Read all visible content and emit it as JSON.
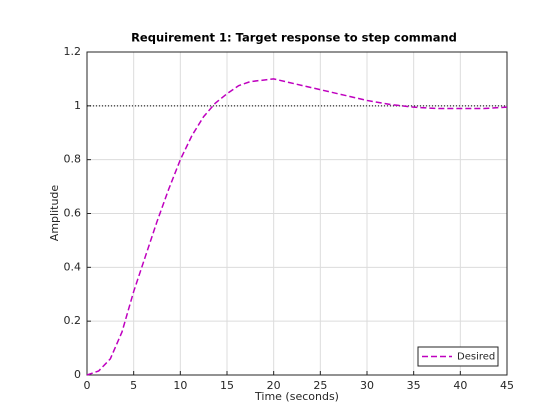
{
  "chart_data": {
    "type": "line",
    "title": "Requirement 1: Target response to step command",
    "x_label": "Time (seconds)",
    "y_label": "Amplitude",
    "x": [
      0,
      1.25,
      2.5,
      3.75,
      5,
      6.25,
      7.5,
      8.75,
      10,
      11.25,
      12.5,
      13.75,
      15,
      16.25,
      17.5,
      20,
      22.5,
      25,
      27.5,
      30,
      32.5,
      35,
      37.5,
      40,
      42.5,
      45
    ],
    "series": [
      {
        "name": "Desired",
        "color": "#bf00bf",
        "dash": true,
        "values": [
          0,
          0.015,
          0.06,
          0.16,
          0.31,
          0.44,
          0.57,
          0.69,
          0.8,
          0.89,
          0.96,
          1.01,
          1.045,
          1.075,
          1.09,
          1.1,
          1.08,
          1.06,
          1.04,
          1.02,
          1.005,
          0.995,
          0.99,
          0.99,
          0.99,
          0.995
        ]
      }
    ],
    "reference_line": 1,
    "xlim": [
      0,
      45
    ],
    "xticks": [
      0,
      5,
      10,
      15,
      20,
      25,
      30,
      35,
      40,
      45
    ],
    "ylim": [
      0,
      1.2
    ],
    "yticks": [
      0,
      0.2,
      0.4,
      0.6,
      0.8,
      1,
      1.2
    ],
    "grid": true,
    "legend": "bottom-right"
  }
}
